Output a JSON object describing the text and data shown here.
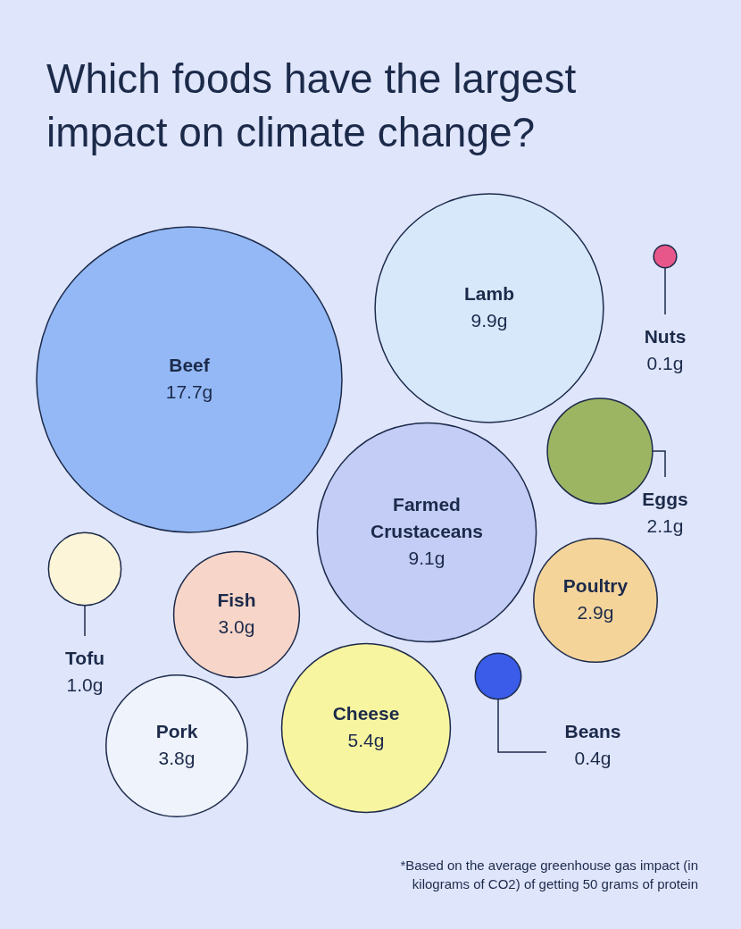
{
  "chart_data": {
    "type": "other",
    "title": "Which foods have the largest impact on climate change?",
    "categories": [
      "Beef",
      "Lamb",
      "Nuts",
      "Eggs",
      "Farmed Crustaceans",
      "Tofu",
      "Fish",
      "Poultry",
      "Cheese",
      "Beans",
      "Pork"
    ],
    "values": [
      17.7,
      9.9,
      0.1,
      2.1,
      9.1,
      1.0,
      3.0,
      2.9,
      5.4,
      0.4,
      3.8
    ],
    "value_labels": [
      "17.7g",
      "9.9g",
      "0.1g",
      "2.1g",
      "9.1g",
      "1.0g",
      "3.0g",
      "2.9g",
      "5.4g",
      "0.4g",
      "3.8g"
    ],
    "colors": [
      "#93b8f5",
      "#d8e8fb",
      "#e8578a",
      "#9cb562",
      "#c3cdf5",
      "#fdf5d8",
      "#f7d5c8",
      "#f5d49a",
      "#f8f5a0",
      "#3a5ce8",
      "#eef3fc"
    ],
    "annotations": [
      "*Based on the average greenhouse gas impact (in kilograms of CO2) of getting 50 grams of protein"
    ]
  }
}
